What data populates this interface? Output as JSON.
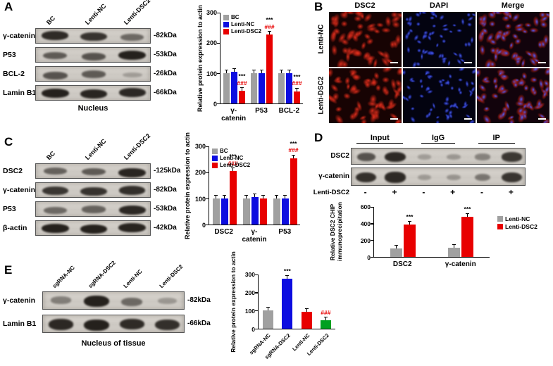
{
  "panels": {
    "A": {
      "label": "A"
    },
    "B": {
      "label": "B",
      "col_headers": [
        "DSC2",
        "DAPI",
        "Merge"
      ],
      "row_labels": [
        "Lenti-NC",
        "Lenti-DSC2"
      ],
      "channel_colors": {
        "dsc2_red": "#e03020",
        "dapi_blue": "#3450e8"
      }
    },
    "C": {
      "label": "C"
    },
    "D": {
      "label": "D",
      "ip_groups": [
        "Input",
        "IgG",
        "IP"
      ],
      "condition_label": "Lenti-DSC2",
      "condition_values": [
        "-",
        "+",
        "-",
        "+",
        "-",
        "+"
      ]
    },
    "E": {
      "label": "E"
    }
  },
  "blots": {
    "A": {
      "lanes": [
        "BC",
        "Lenti-NC",
        "Lenti-DSC2"
      ],
      "rows": [
        {
          "protein": "γ-catenin",
          "kda": "-82kDa",
          "bands": [
            0.88,
            0.82,
            0.45
          ]
        },
        {
          "protein": "P53",
          "kda": "-53kDa",
          "bands": [
            0.55,
            0.6,
            0.95
          ]
        },
        {
          "protein": "BCL-2",
          "kda": "-26kDa",
          "bands": [
            0.6,
            0.55,
            0.08
          ]
        },
        {
          "protein": "Lamin B1",
          "kda": "-66kDa",
          "bands": [
            0.95,
            0.92,
            0.9
          ]
        }
      ],
      "caption": "Nucleus"
    },
    "C": {
      "lanes": [
        "BC",
        "Lenti-NC",
        "Lenti-DSC2"
      ],
      "rows": [
        {
          "protein": "DSC2",
          "kda": "-125kDa",
          "bands": [
            0.5,
            0.55,
            0.92
          ]
        },
        {
          "protein": "γ-catenin",
          "kda": "-82kDa",
          "bands": [
            0.8,
            0.82,
            0.85
          ]
        },
        {
          "protein": "P53",
          "kda": "-53kDa",
          "bands": [
            0.45,
            0.5,
            0.9
          ]
        },
        {
          "protein": "β-actin",
          "kda": "-42kDa",
          "bands": [
            0.95,
            0.95,
            0.93
          ]
        }
      ]
    },
    "D": {
      "rows": [
        {
          "protein": "DSC2",
          "bands": [
            0.6,
            0.9,
            0.05,
            0.1,
            0.25,
            0.8
          ]
        },
        {
          "protein": "γ-catenin",
          "bands": [
            0.85,
            0.9,
            0.08,
            0.12,
            0.35,
            0.82
          ]
        }
      ]
    },
    "E": {
      "lanes": [
        "sgRNA-NC",
        "sgRNA-DSC2",
        "Lenti-NC",
        "Lenti-DSC2"
      ],
      "rows": [
        {
          "protein": "γ-catenin",
          "kda": "-82kDa",
          "bands": [
            0.3,
            0.95,
            0.45,
            0.12
          ]
        },
        {
          "protein": "Lamin B1",
          "kda": "-66kDa",
          "bands": [
            0.9,
            0.95,
            0.88,
            0.85
          ]
        }
      ],
      "caption": "Nucleus of tissue"
    }
  },
  "chart_data": [
    {
      "id": "A",
      "type": "bar",
      "ylabel": "Relative protein expression to actin",
      "ylim": [
        0,
        300
      ],
      "yticks": [
        0,
        100,
        200,
        300
      ],
      "categories": [
        "γ-catenin",
        "P53",
        "BCL-2"
      ],
      "series": [
        {
          "name": "BC",
          "color": "#a0a0a0",
          "values": [
            100,
            100,
            100
          ]
        },
        {
          "name": "Lenti-NC",
          "color": "#0d0de0",
          "values": [
            105,
            100,
            100
          ]
        },
        {
          "name": "Lenti-DSC2",
          "color": "#e80000",
          "values": [
            42,
            228,
            40
          ]
        }
      ],
      "annotations": [
        {
          "category": 0,
          "series": 2,
          "lines": [
            {
              "text": "***",
              "color": "#000000"
            },
            {
              "text": "###",
              "color": "#e80000"
            }
          ]
        },
        {
          "category": 1,
          "series": 2,
          "lines": [
            {
              "text": "***",
              "color": "#000000"
            },
            {
              "text": "###",
              "color": "#e80000"
            }
          ]
        },
        {
          "category": 2,
          "series": 2,
          "lines": [
            {
              "text": "***",
              "color": "#000000"
            },
            {
              "text": "###",
              "color": "#e80000"
            }
          ]
        }
      ],
      "legend": "top-left"
    },
    {
      "id": "C",
      "type": "bar",
      "ylabel": "Relative protein expression to actin",
      "ylim": [
        0,
        300
      ],
      "yticks": [
        0,
        100,
        200,
        300
      ],
      "categories": [
        "DSC2",
        "γ-catenin",
        "P53"
      ],
      "series": [
        {
          "name": "BC",
          "color": "#a0a0a0",
          "values": [
            100,
            100,
            100
          ]
        },
        {
          "name": "Lenti-NC",
          "color": "#0d0de0",
          "values": [
            100,
            105,
            100
          ]
        },
        {
          "name": "Lenti-DSC2",
          "color": "#e80000",
          "values": [
            205,
            100,
            255
          ]
        }
      ],
      "annotations": [
        {
          "category": 0,
          "series": 2,
          "lines": [
            {
              "text": "***",
              "color": "#000000"
            },
            {
              "text": "###",
              "color": "#e80000"
            }
          ]
        },
        {
          "category": 2,
          "series": 2,
          "lines": [
            {
              "text": "***",
              "color": "#000000"
            },
            {
              "text": "###",
              "color": "#e80000"
            }
          ]
        }
      ],
      "legend": "top-left"
    },
    {
      "id": "D",
      "type": "bar",
      "ylabel": "Relative DSC2 CHIP immunoprecipitation",
      "ylim": [
        0,
        600
      ],
      "yticks": [
        0,
        200,
        400,
        600
      ],
      "categories": [
        "DSC2",
        "γ-catenin"
      ],
      "series": [
        {
          "name": "Lenti-NC",
          "color": "#a0a0a0",
          "values": [
            100,
            110
          ]
        },
        {
          "name": "Lenti-DSC2",
          "color": "#e80000",
          "values": [
            390,
            480
          ]
        }
      ],
      "annotations": [
        {
          "category": 0,
          "series": 1,
          "lines": [
            {
              "text": "***",
              "color": "#000000"
            }
          ]
        },
        {
          "category": 1,
          "series": 1,
          "lines": [
            {
              "text": "***",
              "color": "#000000"
            }
          ]
        }
      ],
      "legend": "right"
    },
    {
      "id": "E",
      "type": "bar",
      "ylabel": "Relative protein expression to actin",
      "ylim": [
        0,
        300
      ],
      "yticks": [
        0,
        100,
        200,
        300
      ],
      "categories": [
        "sgRNA-NC",
        "sgRNA-DSC2",
        "Lenti-NC",
        "Lenti-DSC2"
      ],
      "series": [
        {
          "name": "",
          "colors": [
            "#a0a0a0",
            "#0d0de0",
            "#e80000",
            "#00a020"
          ],
          "values": [
            100,
            275,
            95,
            45
          ]
        }
      ],
      "annotations": [
        {
          "category": 1,
          "series": 0,
          "lines": [
            {
              "text": "***",
              "color": "#000000"
            }
          ]
        },
        {
          "category": 3,
          "series": 0,
          "lines": [
            {
              "text": "###",
              "color": "#e80000"
            }
          ]
        }
      ],
      "legend": "none",
      "xlabel_rotate": -45
    }
  ]
}
